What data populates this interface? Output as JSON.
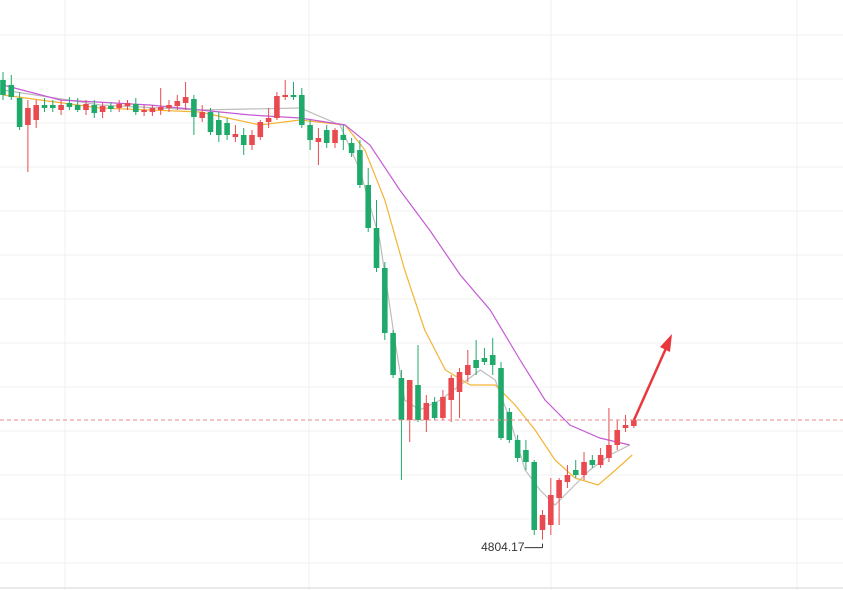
{
  "chart_data": {
    "type": "candlestick",
    "up_color": "#e84a4f",
    "down_color": "#1faa6b",
    "grid": true,
    "xlim": [
      -0.36,
      101.2
    ],
    "ylim": [
      4779,
      5074
    ],
    "open": [
      5034,
      5031.5,
      5025,
      5011.5,
      5014,
      5021.5,
      5021.5,
      5019,
      5022.5,
      5021.5,
      5019,
      5021.5,
      5018,
      5021,
      5020,
      5021,
      5022,
      5018,
      5018,
      5019,
      5020,
      5021,
      5022.5,
      5024.5,
      5015,
      5018,
      5014,
      5012.5,
      5005.5,
      5006.5,
      5001.5,
      5005.5,
      5013,
      5015,
      5025.5,
      5026.5,
      5026.5,
      5011.5,
      5003,
      5009,
      5002.5,
      5006.5,
      5002.5,
      4999,
      4981.5,
      4960,
      4940,
      4907.5,
      4885,
      4864,
      4881.5,
      4864,
      4873,
      4865,
      4874,
      4878,
      4886.5,
      4894,
      4895,
      4896.5,
      4890,
      4868,
      4854,
      4849,
      4843,
      4809,
      4811.5,
      4825,
      4833,
      4839,
      4836.5,
      4844,
      4841.5,
      4845,
      4851.5,
      4860,
      4861
    ],
    "high": [
      5038,
      5036.5,
      5028,
      5024,
      5024,
      5025,
      5024,
      5024,
      5025.5,
      5025,
      5024,
      5024,
      5022.5,
      5023,
      5024,
      5024,
      5025,
      5021.5,
      5021.5,
      5030,
      5024,
      5026.5,
      5033,
      5026.5,
      5021.5,
      5020,
      5018,
      5015,
      5011.5,
      5010,
      5009,
      5014,
      5020,
      5028,
      5034,
      5033,
      5030,
      5014,
      5010,
      5011.5,
      5010,
      5011.5,
      5005,
      5004,
      4990,
      4974,
      4943,
      4909,
      4889,
      4881.5,
      4901.5,
      4876.5,
      4875.5,
      4879,
      4886.5,
      4890,
      4899,
      4904,
      4900,
      4905,
      4893,
      4870,
      4856.5,
      4854,
      4844,
      4819,
      4835,
      4835,
      4841.5,
      4844,
      4848,
      4846.5,
      4850,
      4870,
      4864,
      4866.5,
      4865
    ],
    "low": [
      5024,
      5024,
      5009,
      4988,
      5010,
      5018,
      5018,
      5016.5,
      5019,
      5018,
      5016.5,
      5015,
      5015,
      5018,
      5018,
      5019,
      5016.5,
      5016,
      5016,
      5016.5,
      5018,
      5019,
      5019,
      5006.5,
      5013,
      5006.5,
      5003,
      5004,
      5003,
      4996.5,
      4999,
      5004,
      5010,
      5014,
      5024,
      5024,
      5010,
      4999,
      4991.5,
      5000,
      5000,
      4999,
      4995.5,
      4980,
      4958,
      4938,
      4904,
      4885,
      4834,
      4853,
      4863,
      4858,
      4864,
      4864,
      4863,
      4865,
      4883,
      4886.5,
      4891.5,
      4886.5,
      4854,
      4852.5,
      4843,
      4839,
      4806.5,
      4804.17,
      4806.5,
      4811.5,
      4830,
      4835,
      4834,
      4840,
      4840,
      4843,
      4849,
      4858,
      4860
    ],
    "close": [
      5026.5,
      5025.5,
      5010.5,
      5020,
      5021.5,
      5020,
      5020,
      5021.5,
      5020.5,
      5019,
      5022,
      5017.5,
      5021,
      5019.5,
      5022,
      5022.5,
      5018,
      5019,
      5020,
      5020.5,
      5021.5,
      5023.5,
      5025.5,
      5015.5,
      5018,
      5008,
      5006.5,
      5006.5,
      5007,
      5001.5,
      5006.5,
      5013,
      5015,
      5026,
      5026.5,
      5025.5,
      5011.5,
      5004,
      5005,
      5002.5,
      5009,
      5004,
      4997.5,
      4981.5,
      4960,
      4940,
      4907.5,
      4886.5,
      4864,
      4884,
      4864,
      4872.5,
      4865,
      4875.5,
      4885,
      4888,
      4891.5,
      4890,
      4893,
      4891.5,
      4855,
      4854,
      4845,
      4843,
      4809,
      4816.5,
      4826.5,
      4834,
      4836.5,
      4836.5,
      4843,
      4841.5,
      4846.5,
      4851.5,
      4859,
      4861.5,
      4864
    ],
    "lines": [
      {
        "color": "#bdbdbd",
        "x": [
          0,
          11.7,
          23.7,
          35.8,
          40.6,
          43,
          45.4,
          47.2,
          48.4,
          50.2,
          52.7,
          55.1,
          57.5,
          59.3,
          61.1,
          62.9,
          64.7,
          66.5,
          68.3,
          70.7,
          73.1,
          75.5
        ],
        "values": [
          5029,
          5021.5,
          5019,
          5020,
          5011.5,
          4989,
          4954,
          4904,
          4874,
          4869,
          4874,
          4881.5,
          4889,
          4884,
          4864,
          4839,
          4829,
          4821.5,
          4829,
          4839,
          4846.5,
          4851.5
        ]
      },
      {
        "color": "#f5b335",
        "x": [
          0,
          11.7,
          23.7,
          31,
          35.8,
          41.2,
          43.6,
          46,
          48.4,
          50.8,
          53.3,
          56.3,
          59.3,
          61.7,
          64.1,
          66.5,
          68.9,
          71.7,
          73.8,
          75.8
        ],
        "values": [
          5026.5,
          5020,
          5018,
          5011.5,
          5014,
          5011.5,
          4999,
          4974,
          4939,
          4909,
          4889,
          4881.5,
          4881.5,
          4871.5,
          4859,
          4844,
          4835,
          4831.5,
          4839,
          4846.5
        ]
      },
      {
        "color": "#c65ad6",
        "x": [
          0,
          6.9,
          17.7,
          29.8,
          35.8,
          41.2,
          44.2,
          47.8,
          51.4,
          55.1,
          58.7,
          62.3,
          65.3,
          68.3,
          71.9,
          75.5
        ],
        "values": [
          5031.5,
          5024,
          5021.5,
          5016.5,
          5015,
          5011.5,
          5001.5,
          4979,
          4959,
          4936.5,
          4919,
          4894,
          4874,
          4861.5,
          4855,
          4851.5
        ]
      }
    ]
  }
}
